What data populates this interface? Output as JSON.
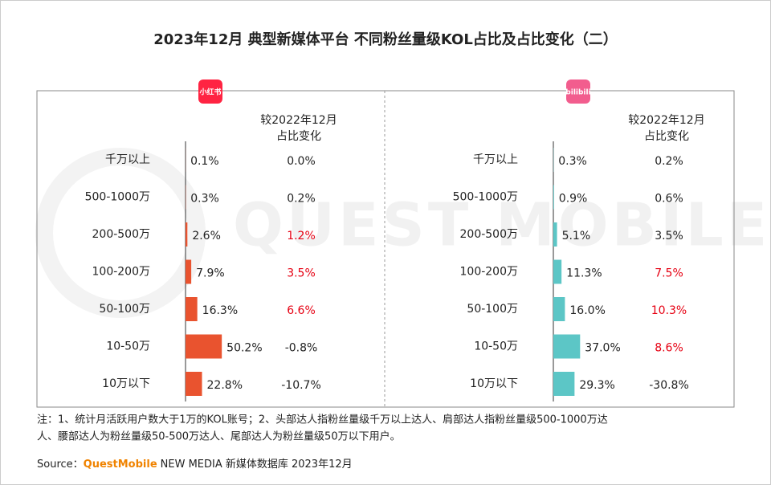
{
  "title": "2023年12月 典型新媒体平台 不同粉丝量级KOL占比及占比变化（二）",
  "watermark": "QUEST MOBILE",
  "note": [
    "注：1、统计月活跃用户数大于1万的KOL账号；2、头部达人指粉丝量级千万以上达人、肩部达人指粉丝量级500-1000万达",
    "人、腰部达人为粉丝量级50-500万达人、尾部达人为粉丝量级50万以下用户。"
  ],
  "source": {
    "prefix": "Source：",
    "brand": "QuestMobile",
    "rest": "NEW MEDIA 新媒体数据库 2023年12月"
  },
  "chart_data": [
    {
      "type": "bar",
      "logo": "小红书",
      "logo_color": "#ff2442",
      "color": "#e9532f",
      "categories": [
        "千万以上",
        "500-1000万",
        "200-500万",
        "100-200万",
        "50-100万",
        "10-50万",
        "10万以下"
      ],
      "values": [
        0.1,
        0.3,
        2.6,
        7.9,
        16.3,
        50.2,
        22.8
      ],
      "value_labels": [
        "0.1%",
        "0.3%",
        "2.6%",
        "7.9%",
        "16.3%",
        "50.2%",
        "22.8%"
      ],
      "xlim": [
        0,
        100
      ],
      "change_header": [
        "较2022年12月",
        "占比变化"
      ],
      "changes": [
        "0.0%",
        "0.2%",
        "1.2%",
        "3.5%",
        "6.6%",
        "-0.8%",
        "-10.7%"
      ],
      "highlight": [
        false,
        false,
        true,
        true,
        true,
        false,
        false
      ],
      "highlight_color": "#e60012"
    },
    {
      "type": "bar",
      "logo": "bilibili",
      "logo_color": "#f25d8e",
      "color": "#5cc6c6",
      "categories": [
        "千万以上",
        "500-1000万",
        "200-500万",
        "100-200万",
        "50-100万",
        "10-50万",
        "10万以下"
      ],
      "values": [
        0.3,
        0.9,
        5.1,
        11.3,
        16.0,
        37.0,
        29.3
      ],
      "value_labels": [
        "0.3%",
        "0.9%",
        "5.1%",
        "11.3%",
        "16.0%",
        "37.0%",
        "29.3%"
      ],
      "xlim": [
        0,
        100
      ],
      "change_header": [
        "较2022年12月",
        "占比变化"
      ],
      "changes": [
        "0.2%",
        "0.6%",
        "3.5%",
        "7.5%",
        "10.3%",
        "8.6%",
        "-30.8%"
      ],
      "highlight": [
        false,
        false,
        false,
        true,
        true,
        true,
        false
      ],
      "highlight_color": "#e60012"
    }
  ]
}
